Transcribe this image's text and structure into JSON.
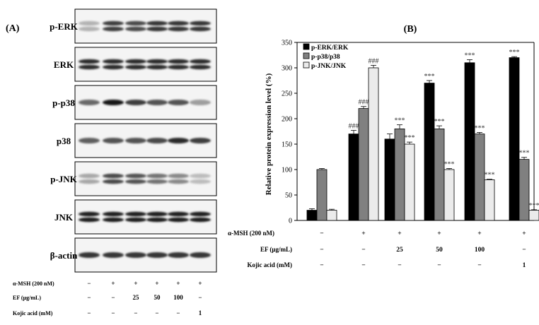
{
  "panel_a": {
    "label": "(A)",
    "blots": [
      {
        "name": "p-ERK",
        "intensity": [
          0.25,
          0.8,
          0.75,
          0.85,
          0.85,
          0.85
        ],
        "bands": 2
      },
      {
        "name": "ERK",
        "intensity": [
          0.9,
          0.9,
          0.9,
          0.9,
          0.9,
          0.9
        ],
        "bands": 2
      },
      {
        "name": "p-p38",
        "intensity": [
          0.6,
          1.0,
          0.8,
          0.7,
          0.7,
          0.35
        ],
        "bands": 1
      },
      {
        "name": "p38",
        "intensity": [
          0.65,
          0.7,
          0.7,
          0.75,
          0.9,
          0.8
        ],
        "bands": 1
      },
      {
        "name": "p-JNK",
        "intensity": [
          0.3,
          0.75,
          0.7,
          0.55,
          0.45,
          0.2
        ],
        "bands": 2
      },
      {
        "name": "JNK",
        "intensity": [
          0.95,
          0.95,
          0.95,
          0.95,
          0.95,
          0.95
        ],
        "bands": 2
      },
      {
        "name": "β-actin",
        "intensity": [
          0.85,
          0.85,
          0.85,
          0.85,
          0.85,
          0.85
        ],
        "bands": 1
      }
    ],
    "conditions": [
      {
        "label": "α-MSH (200 nM)",
        "values": [
          "−",
          "+",
          "+",
          "+",
          "+",
          "+"
        ]
      },
      {
        "label": "EF (μg/mL)",
        "values": [
          "−",
          "−",
          "25",
          "50",
          "100",
          "−"
        ]
      },
      {
        "label": "Kojic acid (mM)",
        "values": [
          "−",
          "−",
          "−",
          "−",
          "−",
          "1"
        ]
      }
    ]
  },
  "chart_data": {
    "type": "bar",
    "title": "(B)",
    "ylabel": "Relative protein expression level (%)",
    "xlabel": "",
    "ylim": [
      0,
      350
    ],
    "yticks": [
      0,
      50,
      100,
      150,
      200,
      250,
      300,
      350
    ],
    "legend_position": "top-left",
    "series": [
      {
        "name": "p-ERK/ERK",
        "color": "#000000",
        "values": [
          20,
          170,
          160,
          270,
          310,
          320
        ],
        "errors": [
          3,
          7,
          10,
          5,
          6,
          2
        ],
        "sig": [
          "",
          "###",
          "",
          "***",
          "***",
          "***"
        ]
      },
      {
        "name": "p-p38/p38",
        "color": "#808080",
        "values": [
          100,
          220,
          180,
          180,
          170,
          120
        ],
        "errors": [
          2,
          4,
          8,
          6,
          3,
          4
        ],
        "sig": [
          "",
          "###",
          "***",
          "***",
          "***",
          "***"
        ]
      },
      {
        "name": "p-JNK/JNK",
        "color": "#ebebeb",
        "values": [
          20,
          300,
          150,
          100,
          80,
          20
        ],
        "errors": [
          2,
          5,
          4,
          2,
          1,
          1
        ],
        "sig": [
          "",
          "###",
          "***",
          "***",
          "***",
          "***"
        ]
      }
    ],
    "conditions": [
      {
        "label": "α-MSH (200 nM)",
        "values": [
          "−",
          "+",
          "+",
          "+",
          "+",
          "+"
        ]
      },
      {
        "label": "EF (μg/mL)",
        "values": [
          "−",
          "−",
          "25",
          "50",
          "100",
          "−"
        ]
      },
      {
        "label": "Kojic acid (mM)",
        "values": [
          "−",
          "−",
          "−",
          "−",
          "−",
          "1"
        ]
      }
    ]
  }
}
